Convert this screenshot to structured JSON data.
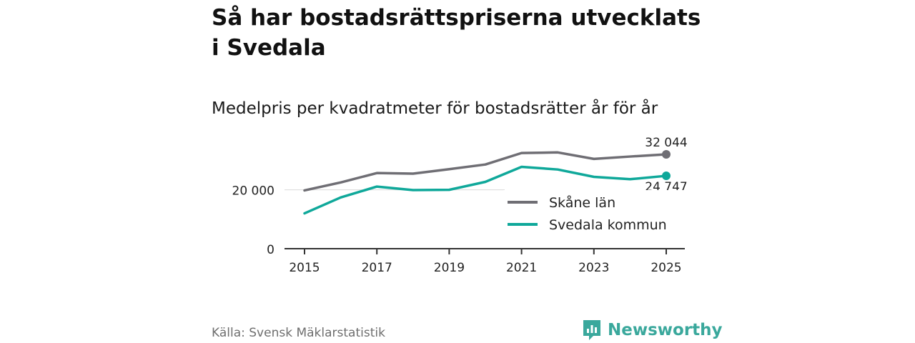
{
  "title": "Så har bostadsrättspriserna utvecklats i Svedala",
  "subtitle": "Medelpris per kvadratmeter för bostadsrätter år för år",
  "source": "Källa: Svensk Mäklarstatistik",
  "brand": {
    "name": "Newsworthy",
    "icon": "newsworthy-logo-icon"
  },
  "colors": {
    "skane": "#6f6e74",
    "svedala": "#0fa89a",
    "axis": "#333333",
    "grid": "#d9d9d9"
  },
  "chart_data": {
    "type": "line",
    "title": "Så har bostadsrättspriserna utvecklats i Svedala",
    "subtitle": "Medelpris per kvadratmeter för bostadsrätter år för år",
    "x": [
      2015,
      2016,
      2017,
      2018,
      2019,
      2020,
      2021,
      2022,
      2023,
      2024,
      2025
    ],
    "x_ticks": [
      "2015",
      "2017",
      "2019",
      "2021",
      "2023",
      "2025"
    ],
    "y_ticks": [
      {
        "value": 0,
        "label": "0"
      },
      {
        "value": 20000,
        "label": "20 000"
      }
    ],
    "ylim": [
      0,
      32044
    ],
    "grid": "horizontal",
    "legend_position": "inside right",
    "series": [
      {
        "name": "Skåne län",
        "color": "#6f6e74",
        "values": [
          19800,
          22500,
          25700,
          25500,
          27000,
          28600,
          32500,
          32700,
          30500,
          31300,
          32044
        ],
        "end_label": "32 044"
      },
      {
        "name": "Svedala kommun",
        "color": "#0fa89a",
        "values": [
          12000,
          17400,
          21100,
          19900,
          20000,
          22700,
          27800,
          26900,
          24400,
          23600,
          24747
        ],
        "end_label": "24 747"
      }
    ]
  }
}
